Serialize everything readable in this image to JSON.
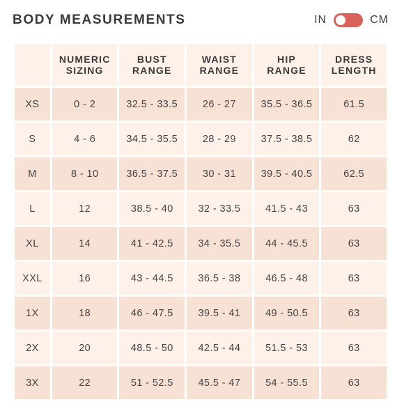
{
  "header": {
    "title": "BODY MEASUREMENTS",
    "unit_left": "IN",
    "unit_right": "CM",
    "toggle_state": "IN",
    "toggle_color": "#d9635c"
  },
  "table": {
    "headers": [
      {
        "line1": "",
        "line2": ""
      },
      {
        "line1": "NUMERIC",
        "line2": "SIZING"
      },
      {
        "line1": "BUST",
        "line2": "RANGE"
      },
      {
        "line1": "WAIST",
        "line2": "RANGE"
      },
      {
        "line1": "HIP",
        "line2": "RANGE"
      },
      {
        "line1": "DRESS",
        "line2": "LENGTH"
      }
    ],
    "rows": [
      [
        "XS",
        "0 - 2",
        "32.5 - 33.5",
        "26 - 27",
        "35.5 - 36.5",
        "61.5"
      ],
      [
        "S",
        "4 - 6",
        "34.5 - 35.5",
        "28 - 29",
        "37.5 - 38.5",
        "62"
      ],
      [
        "M",
        "8 - 10",
        "36.5 - 37.5",
        "30 - 31",
        "39.5 - 40.5",
        "62.5"
      ],
      [
        "L",
        "12",
        "38.5 - 40",
        "32 - 33.5",
        "41.5 - 43",
        "63"
      ],
      [
        "XL",
        "14",
        "41 - 42.5",
        "34 - 35.5",
        "44 - 45.5",
        "63"
      ],
      [
        "XXL",
        "16",
        "43 - 44.5",
        "36.5 - 38",
        "46.5 - 48",
        "63"
      ],
      [
        "1X",
        "18",
        "46 - 47.5",
        "39.5 - 41",
        "49 - 50.5",
        "63"
      ],
      [
        "2X",
        "20",
        "48.5 - 50",
        "42.5 - 44",
        "51.5 - 53",
        "63"
      ],
      [
        "3X",
        "22",
        "51 - 52.5",
        "45.5 - 47",
        "54 - 55.5",
        "63"
      ]
    ],
    "colors": {
      "header_bg": "#fdf1ea",
      "row_shade": "#f6e1d4",
      "row_light": "#fdf1ea"
    }
  }
}
